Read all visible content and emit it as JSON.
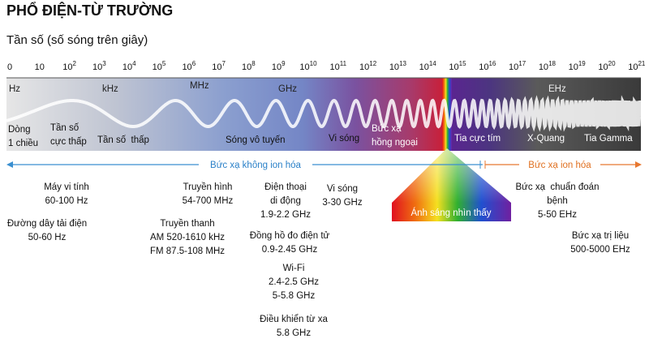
{
  "header": {
    "title": "PHỔ ĐIỆN-TỪ TRƯỜNG",
    "subtitle": "Tần số (số sóng trên giây)"
  },
  "scale": {
    "ticks": [
      {
        "base": "0"
      },
      {
        "base": "10"
      },
      {
        "base": "10",
        "exp": "2"
      },
      {
        "base": "10",
        "exp": "3"
      },
      {
        "base": "10",
        "exp": "4"
      },
      {
        "base": "10",
        "exp": "5"
      },
      {
        "base": "10",
        "exp": "6"
      },
      {
        "base": "10",
        "exp": "7"
      },
      {
        "base": "10",
        "exp": "8"
      },
      {
        "base": "10",
        "exp": "9"
      },
      {
        "base": "10",
        "exp": "10"
      },
      {
        "base": "10",
        "exp": "11"
      },
      {
        "base": "10",
        "exp": "12"
      },
      {
        "base": "10",
        "exp": "13"
      },
      {
        "base": "10",
        "exp": "14"
      },
      {
        "base": "10",
        "exp": "15"
      },
      {
        "base": "10",
        "exp": "16"
      },
      {
        "base": "10",
        "exp": "17"
      },
      {
        "base": "10",
        "exp": "18"
      },
      {
        "base": "10",
        "exp": "19"
      },
      {
        "base": "10",
        "exp": "20"
      },
      {
        "base": "10",
        "exp": "21"
      }
    ]
  },
  "band": {
    "unit_labels": [
      "Hz",
      "kHz",
      "MHz",
      "GHz",
      "EHz"
    ],
    "regions": [
      {
        "lines": [
          "Dòng",
          "1 chiều"
        ]
      },
      {
        "lines": [
          "Tần số",
          "cực thấp"
        ]
      },
      {
        "lines": [
          "Tần số  thấp"
        ]
      },
      {
        "lines": [
          "Sóng vô tuyến"
        ]
      },
      {
        "lines": [
          "Vi sóng"
        ]
      },
      {
        "lines": [
          "Bức xạ",
          "hồng ngoại"
        ]
      },
      {
        "lines": [
          "Tia cực tím"
        ]
      },
      {
        "lines": [
          "X-Quang"
        ]
      },
      {
        "lines": [
          "Tia Gamma"
        ]
      }
    ]
  },
  "axis": {
    "non_ionizing": "Bức xạ không ion hóa",
    "ionizing": "Bức xạ ion hóa"
  },
  "visible_light": "Ánh sáng nhìn thấy",
  "examples": [
    {
      "lines": [
        "Máy vi tính",
        "60-100 Hz"
      ]
    },
    {
      "lines": [
        "Đường dây tải điện",
        "50-60 Hz"
      ]
    },
    {
      "lines": [
        "Truyền hình",
        "54-700 MHz"
      ]
    },
    {
      "lines": [
        "Truyền thanh",
        "AM 520-1610 kHz",
        "FM 87.5-108 MHz"
      ]
    },
    {
      "lines": [
        "Điện thoại",
        "di động",
        "1.9-2.2 GHz"
      ]
    },
    {
      "lines": [
        "Vi sóng",
        "3-30 GHz"
      ]
    },
    {
      "lines": [
        "Đồng hồ đo điện tử",
        "0.9-2.45 GHz"
      ]
    },
    {
      "lines": [
        "Wi-Fi",
        "2.4-2.5 GHz",
        "5-5.8 GHz"
      ]
    },
    {
      "lines": [
        "Điều khiển từ xa",
        "5.8 GHz"
      ]
    },
    {
      "lines": [
        "Bức xạ  chuẩn đoán",
        "bệnh",
        "5-50 EHz"
      ]
    },
    {
      "lines": [
        "Bức xạ trị liệu",
        "500-5000 EHz"
      ]
    }
  ]
}
